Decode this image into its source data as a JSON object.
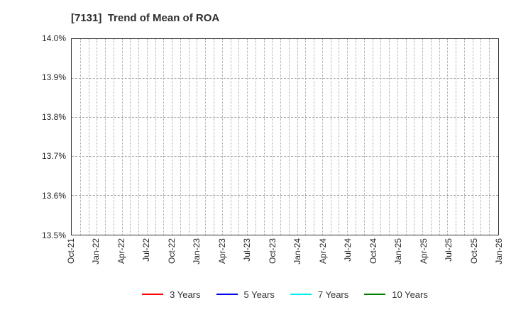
{
  "chart_data": {
    "type": "line",
    "title": "[7131]  Trend of Mean of ROA",
    "x_tick_labels": [
      "Oct-21",
      "Jan-22",
      "Apr-22",
      "Jul-22",
      "Oct-22",
      "Jan-23",
      "Apr-23",
      "Jul-23",
      "Oct-23",
      "Jan-24",
      "Apr-24",
      "Jul-24",
      "Oct-24",
      "Jan-25",
      "Apr-25",
      "Jul-25",
      "Oct-25",
      "Jan-26"
    ],
    "months_per_labeled_tick": 3,
    "minor_vertical_grid": "monthly",
    "y_tick_labels": [
      "13.5%",
      "13.6%",
      "13.7%",
      "13.8%",
      "13.9%",
      "14.0%"
    ],
    "y_ticks": [
      13.5,
      13.6,
      13.7,
      13.8,
      13.9,
      14.0
    ],
    "ylim": [
      13.5,
      14.0
    ],
    "grid": true,
    "legend_position": "bottom",
    "series": [
      {
        "name": "3 Years",
        "color": "#ff0000",
        "values": []
      },
      {
        "name": "5 Years",
        "color": "#0000ee",
        "values": []
      },
      {
        "name": "7 Years",
        "color": "#00eeee",
        "values": []
      },
      {
        "name": "10 Years",
        "color": "#008000",
        "values": []
      }
    ]
  },
  "colors": {
    "plot_border": "#333333",
    "grid": "#a8a8a8",
    "text": "#262626",
    "title_text": "#2e2e2e"
  }
}
